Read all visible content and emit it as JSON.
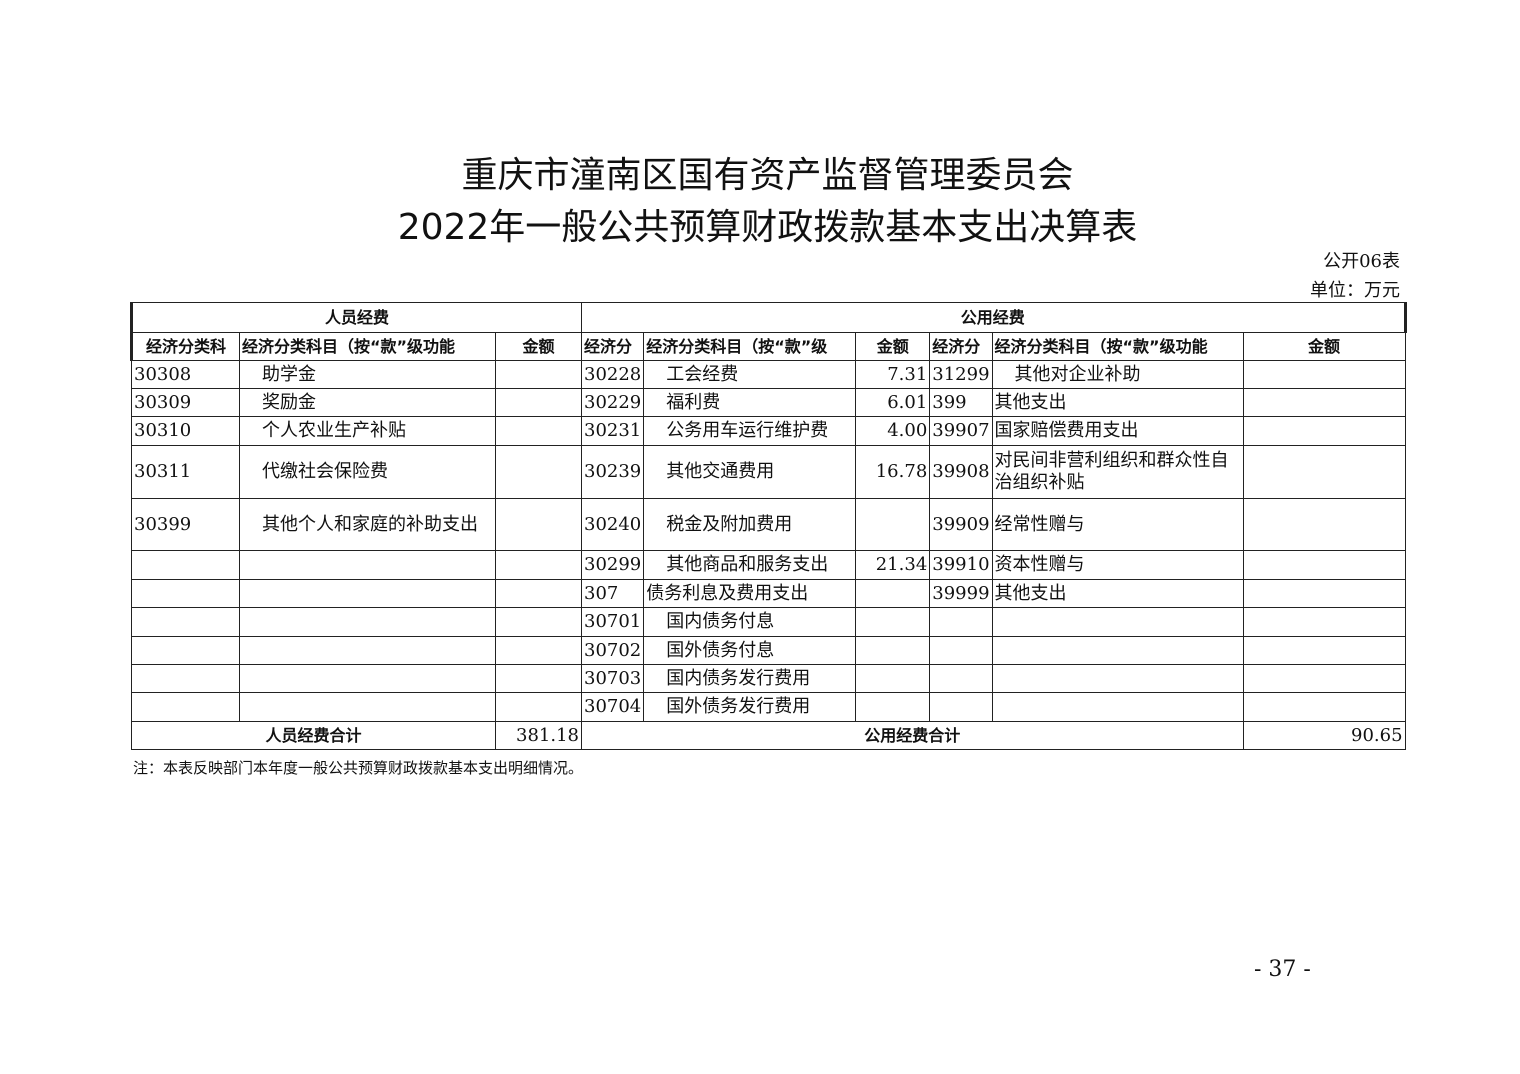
{
  "title_line1": "重庆市潼南区国有资产监督管理委员会",
  "title_line2": "2022年一般公共预算财政拨款基本支出决算表",
  "table_code": "公开06表",
  "unit": "单位：万元",
  "headers": {
    "personnel": "人员经费",
    "public": "公用经费",
    "col_code_p": "经济分类科",
    "col_name_p": "经济分类科目（按“款”级功能",
    "col_amount_p": "金额",
    "col_code_a": "经济分",
    "col_name_a": "经济分类科目（按“款”级",
    "col_amount_a": "金额",
    "col_code_b": "经济分",
    "col_name_b": "经济分类科目（按“款”级功能",
    "col_amount_b": "金额"
  },
  "rows": [
    {
      "p_code": "30308",
      "p_name": "助学金",
      "p_amt": "",
      "a_code": "30228",
      "a_name": "工会经费",
      "a_amt": "7.31",
      "b_code": "31299",
      "b_name": "其他对企业补助",
      "b_amt": ""
    },
    {
      "p_code": "30309",
      "p_name": "奖励金",
      "p_amt": "",
      "a_code": "30229",
      "a_name": "福利费",
      "a_amt": "6.01",
      "b_code": "399",
      "b_name": "其他支出",
      "b_amt": ""
    },
    {
      "p_code": "30310",
      "p_name": "个人农业生产补贴",
      "p_amt": "",
      "a_code": "30231",
      "a_name": "公务用车运行维护费",
      "a_amt": "4.00",
      "b_code": "39907",
      "b_name": "国家赔偿费用支出",
      "b_amt": ""
    },
    {
      "p_code": "30311",
      "p_name": "代缴社会保险费",
      "p_amt": "",
      "a_code": "30239",
      "a_name": "其他交通费用",
      "a_amt": "16.78",
      "b_code": "39908",
      "b_name": "对民间非营利组织和群众性自治组织补贴",
      "b_amt": ""
    },
    {
      "p_code": "30399",
      "p_name": "其他个人和家庭的补助支出",
      "p_amt": "",
      "a_code": "30240",
      "a_name": "税金及附加费用",
      "a_amt": "",
      "b_code": "39909",
      "b_name": "经常性赠与",
      "b_amt": ""
    },
    {
      "p_code": "",
      "p_name": "",
      "p_amt": "",
      "a_code": "30299",
      "a_name": "其他商品和服务支出",
      "a_amt": "21.34",
      "b_code": "39910",
      "b_name": "资本性赠与",
      "b_amt": ""
    },
    {
      "p_code": "",
      "p_name": "",
      "p_amt": "",
      "a_code": "307",
      "a_name": "债务利息及费用支出",
      "a_amt": "",
      "b_code": "39999",
      "b_name": "其他支出",
      "b_amt": ""
    },
    {
      "p_code": "",
      "p_name": "",
      "p_amt": "",
      "a_code": "30701",
      "a_name": "国内债务付息",
      "a_amt": "",
      "b_code": "",
      "b_name": "",
      "b_amt": ""
    },
    {
      "p_code": "",
      "p_name": "",
      "p_amt": "",
      "a_code": "30702",
      "a_name": "国外债务付息",
      "a_amt": "",
      "b_code": "",
      "b_name": "",
      "b_amt": ""
    },
    {
      "p_code": "",
      "p_name": "",
      "p_amt": "",
      "a_code": "30703",
      "a_name": "国内债务发行费用",
      "a_amt": "",
      "b_code": "",
      "b_name": "",
      "b_amt": ""
    },
    {
      "p_code": "",
      "p_name": "",
      "p_amt": "",
      "a_code": "30704",
      "a_name": "国外债务发行费用",
      "a_amt": "",
      "b_code": "",
      "b_name": "",
      "b_amt": ""
    }
  ],
  "totals": {
    "personnel_label": "人员经费合计",
    "personnel_value": "381.18",
    "public_label": "公用经费合计",
    "public_value": "90.65"
  },
  "note": "注：本表反映部门本年度一般公共预算财政拨款基本支出明细情况。",
  "page_number": "- 37 -"
}
